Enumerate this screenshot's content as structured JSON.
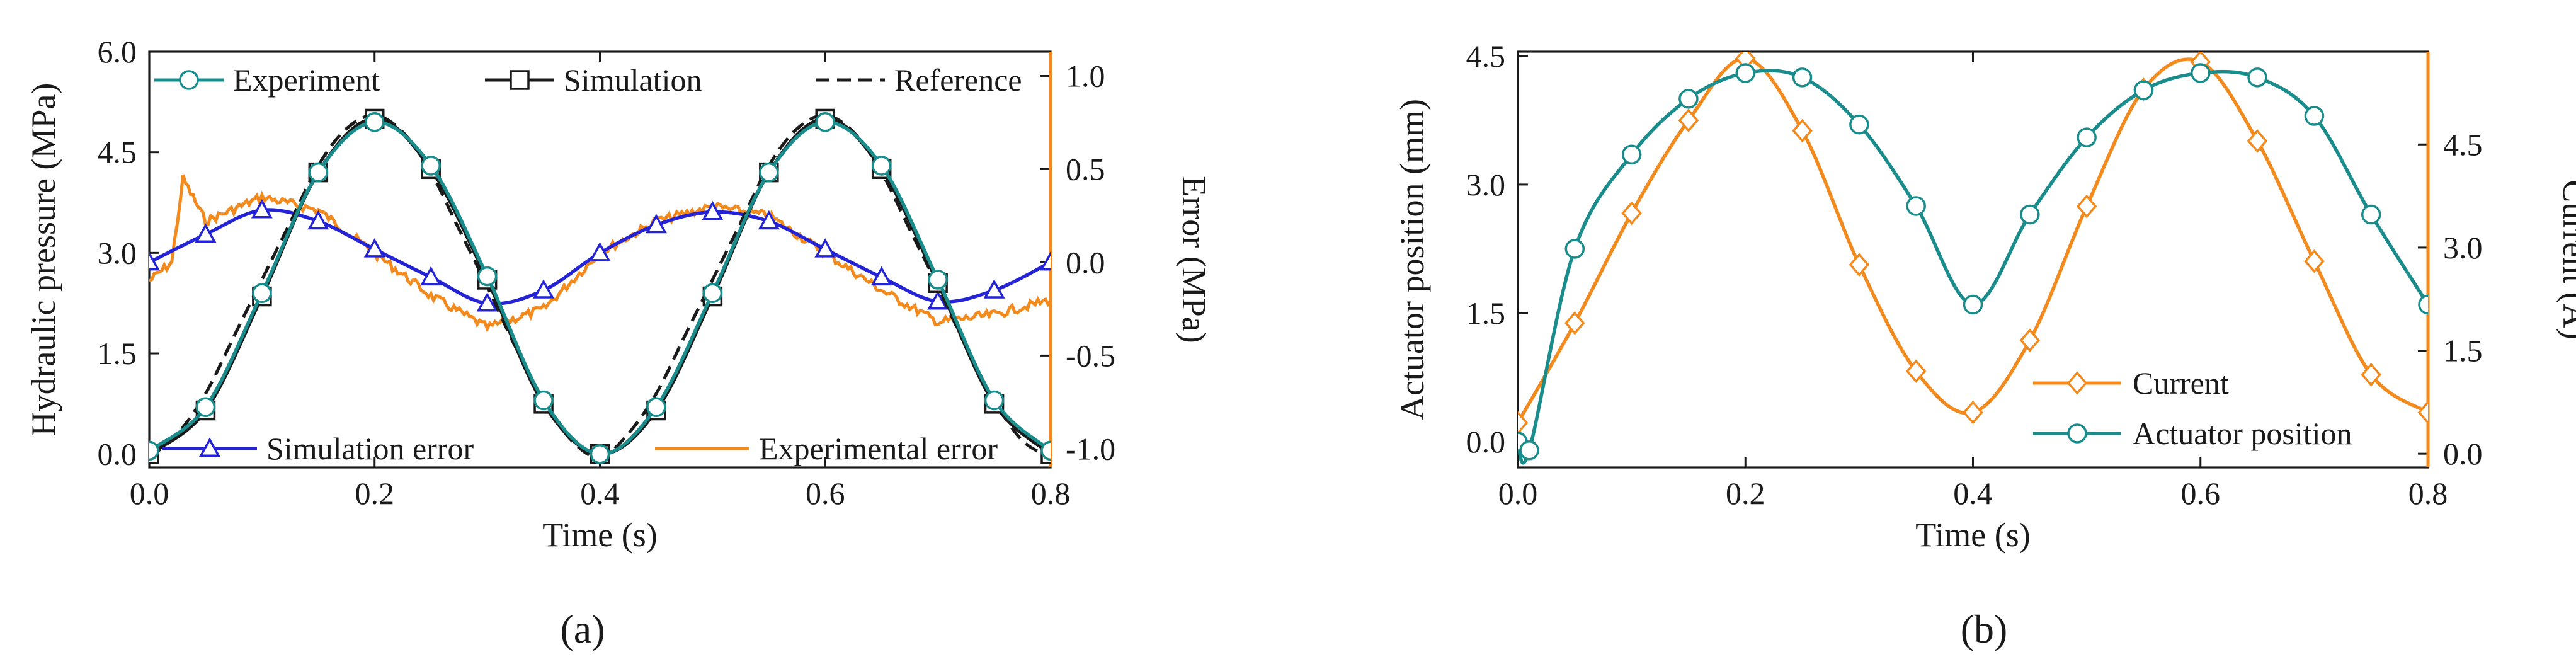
{
  "chart_data": [
    {
      "panel": "(a)",
      "type": "line",
      "xlabel": "Time (s)",
      "ylabel_left": "Hydraulic pressure  (MPa)",
      "ylabel_right": "Error (MPa)",
      "xlim": [
        0,
        0.8
      ],
      "ylim_left": [
        -0.2,
        6.0
      ],
      "ylim_right": [
        -1.1,
        1.13
      ],
      "x_ticks": [
        "0.0",
        "0.2",
        "0.4",
        "0.6",
        "0.8"
      ],
      "y_ticks_left": [
        "0.0",
        "1.5",
        "3.0",
        "4.5",
        "6.0"
      ],
      "y_ticks_right": [
        "-1.0",
        "-0.5",
        "0.0",
        "0.5",
        "1.0"
      ],
      "legend_top": [
        "Experiment",
        "Simulation",
        "Reference"
      ],
      "legend_bottom": [
        "Simulation error",
        "Experimental error"
      ],
      "series": [
        {
          "name": "Experiment",
          "axis": "left",
          "color": "#1a8c8c",
          "marker": "circle",
          "x": [
            0.0,
            0.05,
            0.1,
            0.15,
            0.2,
            0.25,
            0.3,
            0.35,
            0.4,
            0.45,
            0.5,
            0.55,
            0.6,
            0.65,
            0.7,
            0.75,
            0.8
          ],
          "y": [
            0.05,
            0.7,
            2.4,
            4.2,
            4.95,
            4.3,
            2.65,
            0.8,
            0.0,
            0.7,
            2.4,
            4.2,
            4.95,
            4.3,
            2.6,
            0.8,
            0.05
          ]
        },
        {
          "name": "Simulation",
          "axis": "left",
          "color": "#1a1a1a",
          "marker": "square",
          "x": [
            0.0,
            0.05,
            0.1,
            0.15,
            0.2,
            0.25,
            0.3,
            0.35,
            0.4,
            0.45,
            0.5,
            0.55,
            0.6,
            0.65,
            0.7,
            0.75,
            0.8
          ],
          "y": [
            0.0,
            0.65,
            2.35,
            4.2,
            5.0,
            4.25,
            2.6,
            0.75,
            0.0,
            0.65,
            2.35,
            4.2,
            5.0,
            4.25,
            2.55,
            0.75,
            0.0
          ]
        },
        {
          "name": "Reference",
          "axis": "left",
          "color": "#1a1a1a",
          "style": "dashed",
          "x": [
            0.0,
            0.025,
            0.05,
            0.075,
            0.1,
            0.125,
            0.15,
            0.175,
            0.2,
            0.225,
            0.25,
            0.275,
            0.3,
            0.325,
            0.35,
            0.375,
            0.4,
            0.425,
            0.45,
            0.475,
            0.5,
            0.525,
            0.55,
            0.575,
            0.6,
            0.625,
            0.65,
            0.675,
            0.7,
            0.725,
            0.75,
            0.775,
            0.8
          ],
          "y": [
            -0.05,
            0.3,
            0.9,
            1.75,
            2.6,
            3.45,
            4.3,
            4.85,
            5.05,
            4.8,
            4.2,
            3.35,
            2.5,
            1.6,
            0.8,
            0.2,
            -0.05,
            0.3,
            0.9,
            1.75,
            2.6,
            3.45,
            4.3,
            4.85,
            5.05,
            4.8,
            4.2,
            3.35,
            2.5,
            1.6,
            0.8,
            0.2,
            -0.05
          ]
        },
        {
          "name": "Simulation error",
          "axis": "right",
          "color": "#2424d6",
          "marker": "triangle",
          "x": [
            0.0,
            0.05,
            0.1,
            0.15,
            0.2,
            0.25,
            0.3,
            0.35,
            0.4,
            0.45,
            0.5,
            0.55,
            0.6,
            0.65,
            0.7,
            0.75,
            0.8
          ],
          "y": [
            0.0,
            0.15,
            0.28,
            0.22,
            0.07,
            -0.08,
            -0.22,
            -0.15,
            0.05,
            0.2,
            0.27,
            0.22,
            0.07,
            -0.08,
            -0.21,
            -0.15,
            0.0
          ]
        },
        {
          "name": "Experimental error",
          "axis": "right",
          "color": "#f28a1e",
          "style": "noisy",
          "x": [
            0.0,
            0.02,
            0.03,
            0.05,
            0.1,
            0.15,
            0.2,
            0.25,
            0.3,
            0.35,
            0.4,
            0.45,
            0.5,
            0.55,
            0.6,
            0.65,
            0.7,
            0.75,
            0.8
          ],
          "y": [
            -0.1,
            0.0,
            0.45,
            0.22,
            0.35,
            0.28,
            0.05,
            -0.18,
            -0.35,
            -0.25,
            0.05,
            0.22,
            0.3,
            0.25,
            0.05,
            -0.15,
            -0.32,
            -0.28,
            -0.2
          ]
        }
      ]
    },
    {
      "panel": "(b)",
      "type": "line",
      "xlabel": "Time (s)",
      "ylabel_left": "Actuator position (mm)",
      "ylabel_right": "Current (A)",
      "xlim": [
        0,
        0.8
      ],
      "ylim_left": [
        -0.3,
        4.55
      ],
      "ylim_right": [
        -0.2,
        5.85
      ],
      "x_ticks": [
        "0.0",
        "0.2",
        "0.4",
        "0.6",
        "0.8"
      ],
      "y_ticks_left": [
        "0.0",
        "1.5",
        "3.0",
        "4.5"
      ],
      "y_ticks_right": [
        "0.0",
        "1.5",
        "3.0",
        "4.5"
      ],
      "legend": [
        "Current",
        "Actuator position"
      ],
      "series": [
        {
          "name": "Current",
          "axis": "right",
          "color": "#f28a1e",
          "marker": "diamond",
          "x": [
            0.0,
            0.05,
            0.1,
            0.15,
            0.2,
            0.25,
            0.3,
            0.35,
            0.4,
            0.45,
            0.5,
            0.55,
            0.6,
            0.65,
            0.7,
            0.75,
            0.8
          ],
          "y": [
            0.45,
            1.9,
            3.5,
            4.85,
            5.75,
            4.7,
            2.75,
            1.2,
            0.6,
            1.65,
            3.6,
            5.3,
            5.7,
            4.55,
            2.8,
            1.15,
            0.6
          ]
        },
        {
          "name": "Actuator position",
          "axis": "left",
          "color": "#1a8c8c",
          "marker": "circle",
          "x": [
            0.0,
            0.01,
            0.05,
            0.1,
            0.15,
            0.2,
            0.25,
            0.3,
            0.35,
            0.4,
            0.45,
            0.5,
            0.55,
            0.6,
            0.65,
            0.7,
            0.75,
            0.8
          ],
          "y": [
            0.0,
            -0.1,
            2.25,
            3.35,
            4.0,
            4.3,
            4.25,
            3.7,
            2.75,
            1.6,
            2.65,
            3.55,
            4.1,
            4.3,
            4.25,
            3.8,
            2.65,
            1.6
          ]
        }
      ]
    }
  ]
}
